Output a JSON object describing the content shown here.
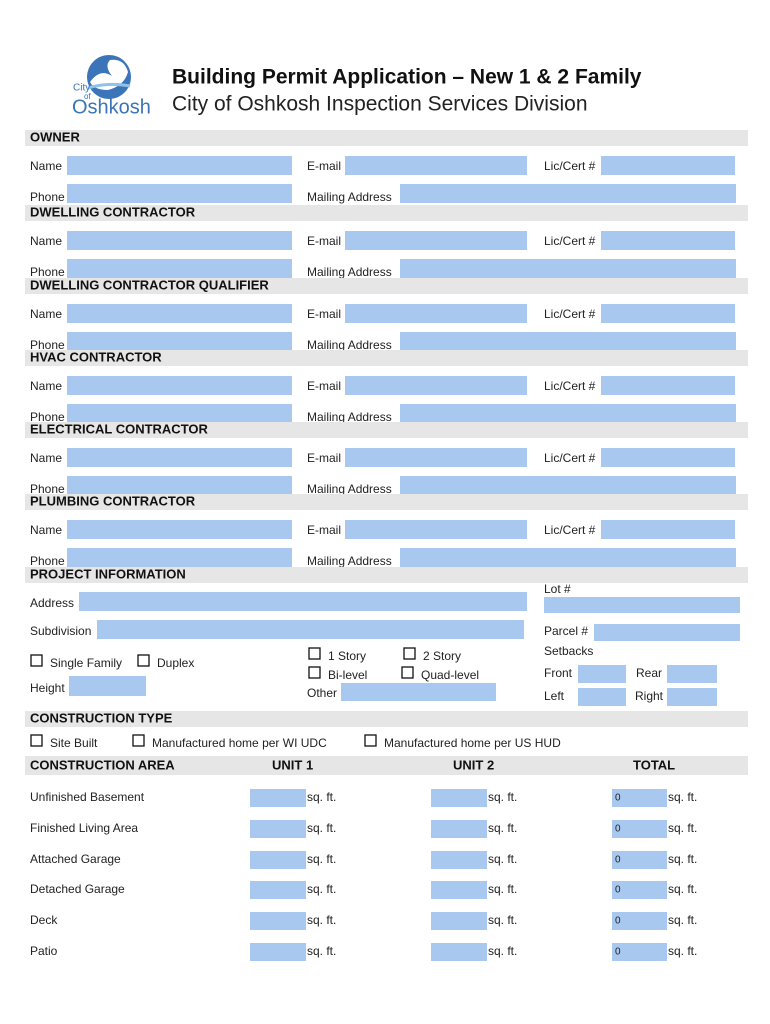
{
  "header": {
    "logo": {
      "line1": "City",
      "line2": "of",
      "line3": "Oshkosh"
    },
    "title": "Building Permit Application – New 1 & 2 Family",
    "subtitle": "City of Oshkosh Inspection Services Division"
  },
  "contacts": [
    {
      "title": "OWNER",
      "labels": [
        "Name",
        "E-mail",
        "Lic/Cert #",
        "Phone",
        "Mailing Address"
      ]
    },
    {
      "title": "DWELLING CONTRACTOR",
      "labels": [
        "Name",
        "E-mail",
        "Lic/Cert #",
        "Phone",
        "Mailing Address"
      ]
    },
    {
      "title": "DWELLING CONTRACTOR QUALIFIER",
      "labels": [
        "Name",
        "E-mail",
        "Lic/Cert #",
        "Phone",
        "Mailing Address"
      ]
    },
    {
      "title": "HVAC CONTRACTOR",
      "labels": [
        "Name",
        "E-mail",
        "Lic/Cert #",
        "Phone",
        "Mailing Address"
      ]
    },
    {
      "title": "ELECTRICAL CONTRACTOR",
      "labels": [
        "Name",
        "E-mail",
        "Lic/Cert #",
        "Phone",
        "Mailing Address"
      ]
    },
    {
      "title": "PLUMBING CONTRACTOR",
      "labels": [
        "Name",
        "E-mail",
        "Lic/Cert #",
        "Phone",
        "Mailing Address"
      ]
    }
  ],
  "project": {
    "title": "PROJECT INFORMATION",
    "address": "Address",
    "lot": "Lot #",
    "subdivision": "Subdivision",
    "parcel": "Parcel #",
    "setbacks": "Setbacks",
    "front": "Front",
    "rear": "Rear",
    "left": "Left",
    "right": "Right",
    "height": "Height",
    "other": "Other",
    "checkboxes": [
      "Single Family",
      "Duplex",
      "1 Story",
      "2 Story",
      "Bi-level",
      "Quad-level"
    ]
  },
  "construction_type": {
    "title": "CONSTRUCTION TYPE",
    "options": [
      "Site Built",
      "Manufactured home per WI UDC",
      "Manufactured home per US HUD"
    ]
  },
  "construction_area": {
    "headers": [
      "CONSTRUCTION AREA",
      "UNIT 1",
      "UNIT 2",
      "TOTAL"
    ],
    "unit": "sq. ft.",
    "rows": [
      {
        "name": "Unfinished Basement",
        "total": 0
      },
      {
        "name": "Finished Living Area",
        "total": 0
      },
      {
        "name": "Attached Garage",
        "total": 0
      },
      {
        "name": "Detached Garage",
        "total": 0
      },
      {
        "name": "Deck",
        "total": 0
      },
      {
        "name": "Patio",
        "total": 0
      }
    ]
  }
}
